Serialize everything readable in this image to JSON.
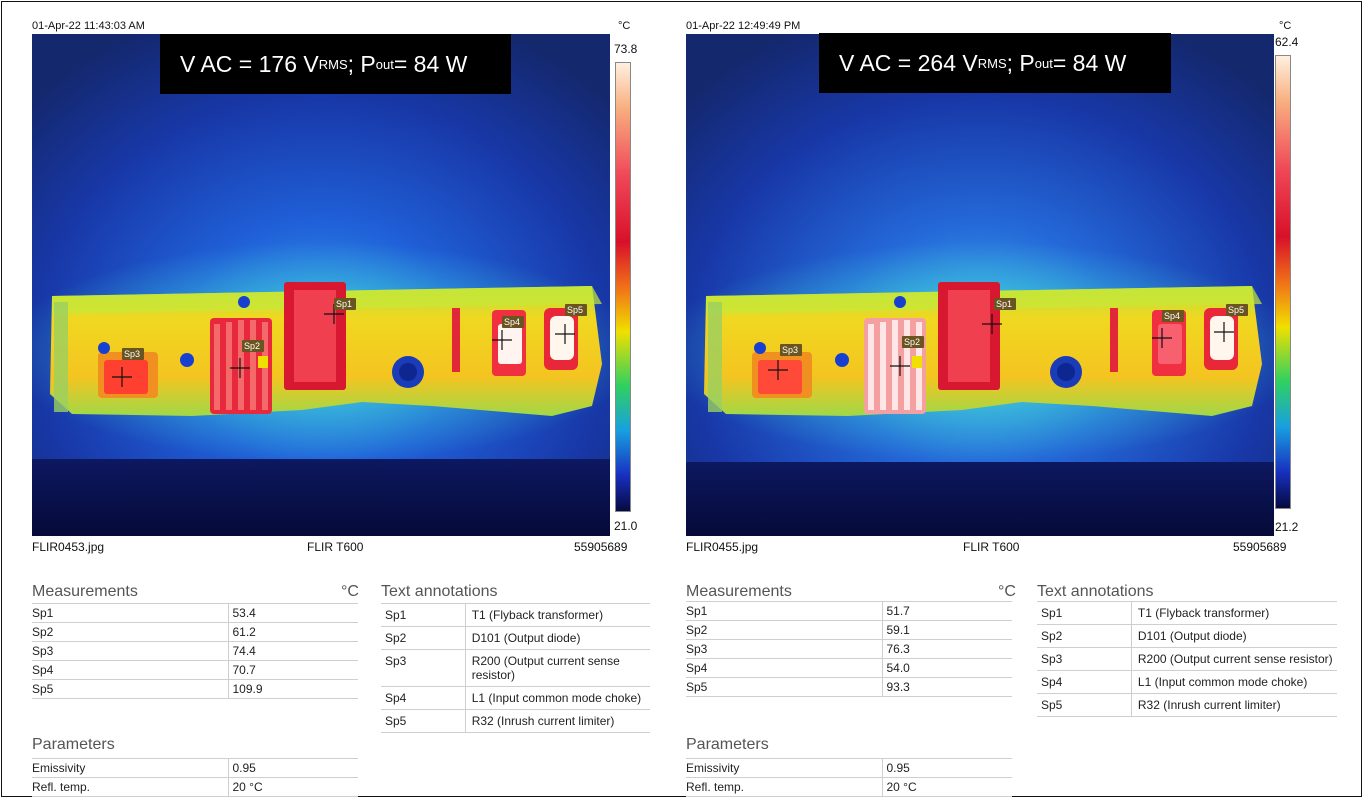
{
  "panels": [
    {
      "timestamp": "01-Apr-22 11:43:03 AM",
      "unit": "°C",
      "scale_max": "73.8",
      "scale_min": "21.0",
      "banner": {
        "prefix": "V AC = 176 V",
        "sub1": "RMS",
        "mid": " ; P",
        "sub2": "out",
        "suffix": " = 84 W"
      },
      "file": "FLIR0453.jpg",
      "camera": "FLIR T600",
      "serial": "55905689",
      "spots": [
        "Sp1",
        "Sp2",
        "Sp3",
        "Sp4",
        "Sp5"
      ],
      "measurements": {
        "title": "Measurements",
        "unit": "°C",
        "rows": [
          {
            "k": "Sp1",
            "v": "53.4"
          },
          {
            "k": "Sp2",
            "v": "61.2"
          },
          {
            "k": "Sp3",
            "v": "74.4"
          },
          {
            "k": "Sp4",
            "v": "70.7"
          },
          {
            "k": "Sp5",
            "v": "109.9"
          }
        ]
      },
      "parameters": {
        "title": "Parameters",
        "rows": [
          {
            "k": "Emissivity",
            "v": "0.95"
          },
          {
            "k": "Refl. temp.",
            "v": "20 °C"
          }
        ]
      },
      "annotations": {
        "title": "Text annotations",
        "rows": [
          {
            "k": "Sp1",
            "v": "T1  (Flyback transformer)"
          },
          {
            "k": "Sp2",
            "v": "D101 (Output diode)"
          },
          {
            "k": "Sp3",
            "v": "R200 (Output current sense resistor)"
          },
          {
            "k": "Sp4",
            "v": "L1 (Input common mode choke)"
          },
          {
            "k": "Sp5",
            "v": "R32 (Inrush current limiter)"
          }
        ]
      }
    },
    {
      "timestamp": "01-Apr-22 12:49:49 PM",
      "unit": "°C",
      "scale_max": "62.4",
      "scale_min": "21.2",
      "banner": {
        "prefix": "V AC = 264 V",
        "sub1": "RMS",
        "mid": " ; P",
        "sub2": "out",
        "suffix": " = 84 W"
      },
      "file": "FLIR0455.jpg",
      "camera": "FLIR T600",
      "serial": "55905689",
      "spots": [
        "Sp1",
        "Sp2",
        "Sp3",
        "Sp4",
        "Sp5"
      ],
      "measurements": {
        "title": "Measurements",
        "unit": "°C",
        "rows": [
          {
            "k": "Sp1",
            "v": "51.7"
          },
          {
            "k": "Sp2",
            "v": "59.1"
          },
          {
            "k": "Sp3",
            "v": "76.3"
          },
          {
            "k": "Sp4",
            "v": "54.0"
          },
          {
            "k": "Sp5",
            "v": "93.3"
          }
        ]
      },
      "parameters": {
        "title": "Parameters",
        "rows": [
          {
            "k": "Emissivity",
            "v": "0.95"
          },
          {
            "k": "Refl. temp.",
            "v": "20 °C"
          }
        ]
      },
      "annotations": {
        "title": "Text annotations",
        "rows": [
          {
            "k": "Sp1",
            "v": "T1 (Flyback transformer)"
          },
          {
            "k": "Sp2",
            "v": "D101 (Output diode)"
          },
          {
            "k": "Sp3",
            "v": "R200 (Output current sense resistor)"
          },
          {
            "k": "Sp4",
            "v": "L1 (Input common mode choke)"
          },
          {
            "k": "Sp5",
            "v": "R32 (Inrush current limiter)"
          }
        ]
      }
    }
  ],
  "colors": {
    "background_cold": "#14286e",
    "palette_hot": "#fff0e0",
    "palette_red": "#e8183a",
    "palette_yellow": "#f0e000",
    "palette_green": "#30d060",
    "palette_blue": "#1830c0"
  }
}
